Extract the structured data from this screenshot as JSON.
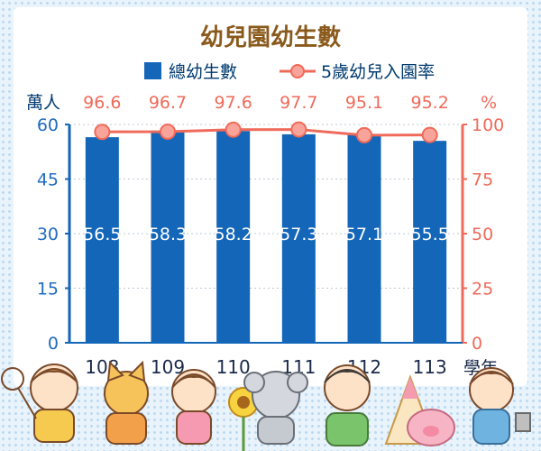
{
  "chart_data": {
    "type": "bar",
    "title": "幼兒園幼生數",
    "categories": [
      "108",
      "109",
      "110",
      "111",
      "112",
      "113"
    ],
    "x_unit": "學年",
    "series": [
      {
        "name": "總幼生數",
        "type": "bar",
        "axis": "left",
        "unit": "萬人",
        "values": [
          56.5,
          58.3,
          58.2,
          57.3,
          57.1,
          55.5
        ],
        "color": "#1466b8"
      },
      {
        "name": "5歲幼兒入園率",
        "type": "line",
        "axis": "right",
        "unit": "%",
        "values": [
          96.6,
          96.7,
          97.6,
          97.7,
          95.1,
          95.2
        ],
        "color": "#ef6a5a"
      }
    ],
    "y_left": {
      "label": "萬人",
      "range": [
        0,
        60
      ],
      "ticks": [
        0,
        15,
        30,
        45,
        60
      ]
    },
    "y_right": {
      "label": "%",
      "range": [
        0,
        100
      ],
      "ticks": [
        0,
        25,
        50,
        75,
        100
      ]
    },
    "grid": true,
    "legend": "top-center"
  }
}
